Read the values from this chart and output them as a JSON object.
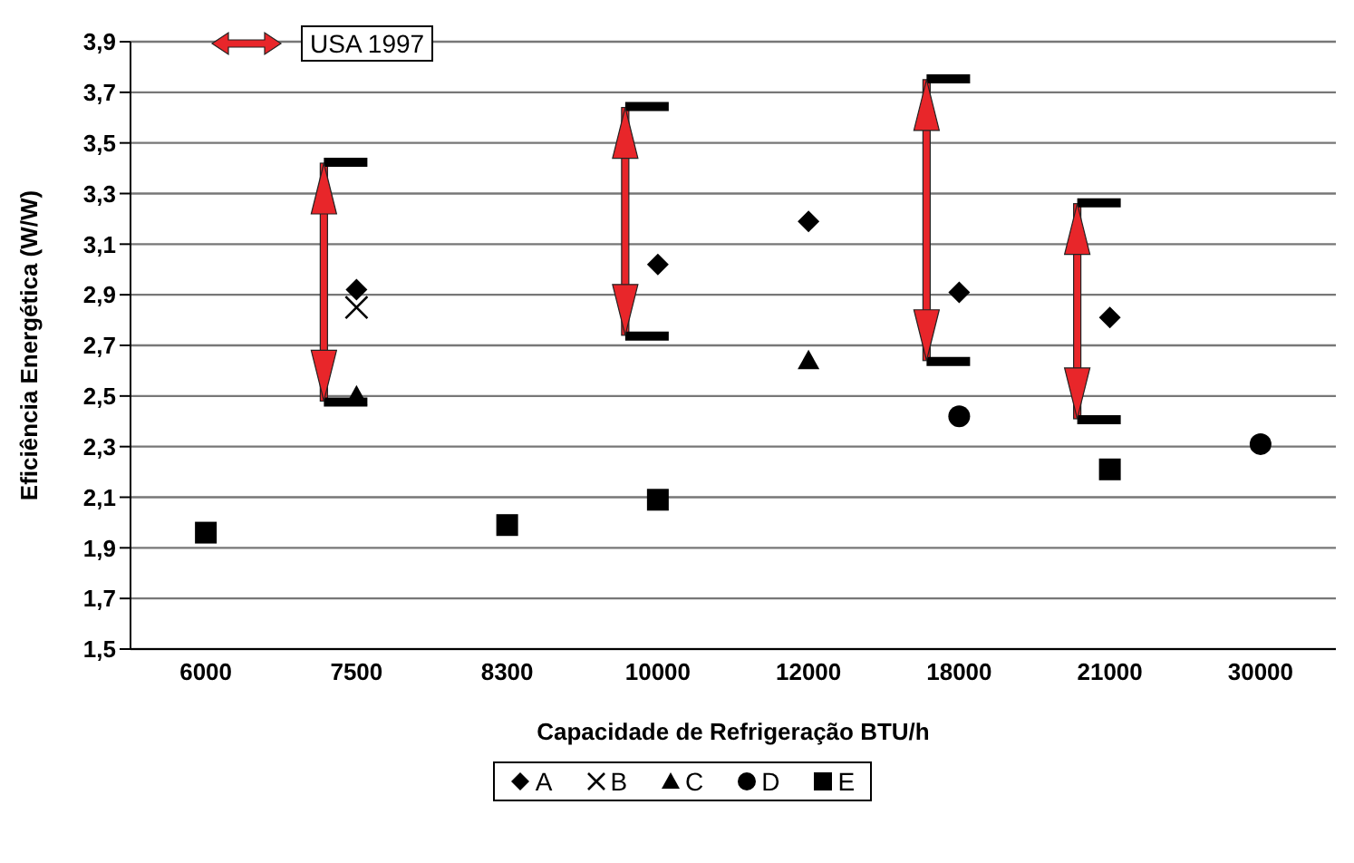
{
  "chart_data": {
    "type": "scatter",
    "xlabel": "Capacidade de Refrigeração BTU/h",
    "ylabel": "Eficiência Energética  (W/W)",
    "categories": [
      "6000",
      "7500",
      "8300",
      "10000",
      "12000",
      "18000",
      "21000",
      "30000"
    ],
    "series": [
      {
        "name": "USA 1997",
        "type": "bar",
        "color": "#e8262a",
        "base": [
          null,
          2.48,
          null,
          2.74,
          null,
          2.64,
          2.41,
          null
        ],
        "values": [
          null,
          0.94,
          null,
          0.9,
          null,
          1.11,
          0.85,
          null
        ]
      },
      {
        "name": "A",
        "marker": "diamond",
        "color": "#000000",
        "values": [
          null,
          2.92,
          null,
          3.02,
          3.19,
          2.91,
          2.81,
          null
        ]
      },
      {
        "name": "B",
        "marker": "cross",
        "color": "#000000",
        "values": [
          null,
          2.85,
          null,
          null,
          null,
          null,
          null,
          null
        ]
      },
      {
        "name": "C",
        "marker": "triangle",
        "color": "#000000",
        "values": [
          null,
          2.5,
          null,
          null,
          2.64,
          null,
          null,
          null
        ]
      },
      {
        "name": "D",
        "marker": "circle",
        "color": "#000000",
        "values": [
          null,
          null,
          null,
          null,
          null,
          2.42,
          null,
          2.31
        ]
      },
      {
        "name": "E",
        "marker": "square",
        "color": "#000000",
        "values": [
          1.96,
          null,
          1.99,
          2.09,
          null,
          null,
          2.21,
          null
        ]
      }
    ],
    "ylim": [
      1.5,
      3.9
    ],
    "yticks": [
      {
        "value": 1.5,
        "label": "1,5"
      },
      {
        "value": 1.7,
        "label": "1,7"
      },
      {
        "value": 1.9,
        "label": "1,9"
      },
      {
        "value": 2.1,
        "label": "2,1"
      },
      {
        "value": 2.3,
        "label": "2,3"
      },
      {
        "value": 2.5,
        "label": "2,5"
      },
      {
        "value": 2.7,
        "label": "2,7"
      },
      {
        "value": 2.9,
        "label": "2,9"
      },
      {
        "value": 3.1,
        "label": "3,1"
      },
      {
        "value": 3.3,
        "label": "3,3"
      },
      {
        "value": 3.5,
        "label": "3,5"
      },
      {
        "value": 3.7,
        "label": "3,7"
      },
      {
        "value": 3.9,
        "label": "3,9"
      }
    ],
    "grid": "y",
    "legend": "bottom"
  }
}
